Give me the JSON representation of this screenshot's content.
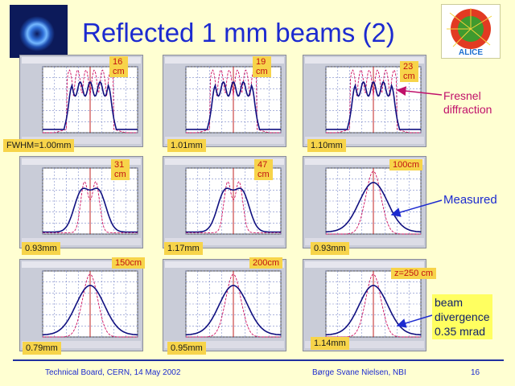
{
  "title": "Reflected 1 mm beams (2)",
  "logo_right_text": "ALICE",
  "panels": [
    {
      "id": "p16",
      "distance": "16\ncm",
      "fwhm": "FWHM=1.00mm",
      "kind": "fresnel"
    },
    {
      "id": "p19",
      "distance": "19\ncm",
      "fwhm": "1.01mm",
      "kind": "fresnel"
    },
    {
      "id": "p23",
      "distance": "23\ncm",
      "fwhm": "1.10mm",
      "kind": "fresnel"
    },
    {
      "id": "p31",
      "distance": "31\ncm",
      "fwhm": "0.93mm",
      "kind": "double"
    },
    {
      "id": "p47",
      "distance": "47\ncm",
      "fwhm": "1.17mm",
      "kind": "double"
    },
    {
      "id": "p100",
      "distance": "100cm",
      "fwhm": "0.93mm",
      "kind": "gauss"
    },
    {
      "id": "p150",
      "distance": "150cm",
      "fwhm": "0.79mm",
      "kind": "gauss"
    },
    {
      "id": "p200",
      "distance": "200cm",
      "fwhm": "0.95mm",
      "kind": "gauss"
    },
    {
      "id": "p250",
      "distance": "z=250 cm",
      "fwhm": "1.14mm",
      "kind": "gauss"
    }
  ],
  "annotations": {
    "fresnel": "Fresnel\ndiffraction",
    "measured": "Measured",
    "divergence": "beam\ndivergence\n0.35 mrad"
  },
  "footer": {
    "left": "Technical Board, CERN, 14 May 2002",
    "center": "Børge Svane Nielsen, NBI",
    "page": "16"
  },
  "colors": {
    "title": "#1c2ad0",
    "label_bg": "#f7d44a",
    "distance_text": "#c21111",
    "measured_curve": "#101080",
    "model_curve": "#d01060"
  }
}
